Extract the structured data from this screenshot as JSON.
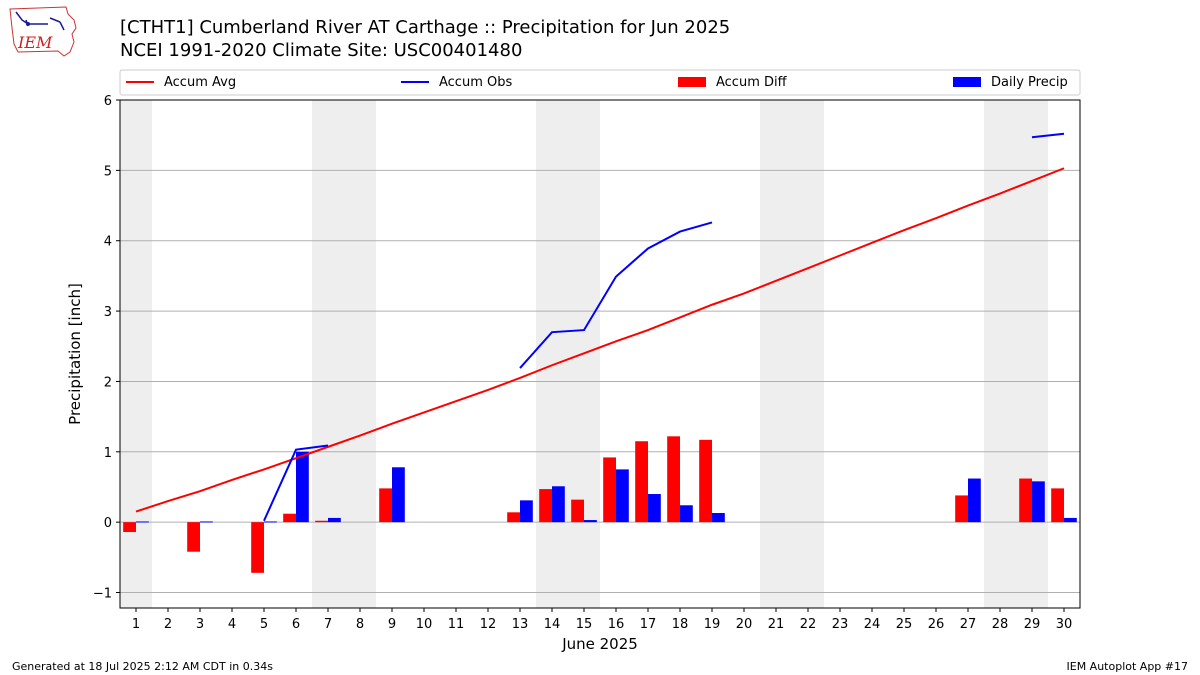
{
  "header": {
    "title_line1": "[CTHT1] Cumberland River  AT Carthage :: Precipitation for Jun 2025",
    "title_line2": "NCEI 1991-2020 Climate Site: USC00401480"
  },
  "logo": {
    "text": "IEM",
    "icon": "iem-iowa-logo-icon"
  },
  "footer": {
    "left": "Generated at 18 Jul 2025 2:12 AM CDT in 0.34s",
    "right": "IEM Autoplot App #17"
  },
  "chart_data": {
    "type": "bar",
    "xlabel": "June 2025",
    "ylabel": "Precipitation [inch]",
    "xlim": [
      0.5,
      30.5
    ],
    "ylim": [
      -1.22,
      6.0
    ],
    "yticks": [
      -1,
      0,
      1,
      2,
      3,
      4,
      5,
      6
    ],
    "xticks": [
      1,
      2,
      3,
      4,
      5,
      6,
      7,
      8,
      9,
      10,
      11,
      12,
      13,
      14,
      15,
      16,
      17,
      18,
      19,
      20,
      21,
      22,
      23,
      24,
      25,
      26,
      27,
      28,
      29,
      30
    ],
    "grid": "horizontal",
    "legend_position": "top",
    "weekend_shading_days": [
      1,
      7,
      8,
      14,
      15,
      21,
      22,
      28,
      29
    ],
    "shading_color": "#eeeeee",
    "colors": {
      "accum_avg": "#ff0000",
      "accum_obs": "#0000ff",
      "accum_diff": "#ff0000",
      "daily_precip": "#0000ff"
    },
    "series": [
      {
        "name": "Accum Avg",
        "kind": "line",
        "days": [
          1,
          2,
          3,
          4,
          5,
          6,
          7,
          8,
          9,
          10,
          11,
          12,
          13,
          14,
          15,
          16,
          17,
          18,
          19,
          20,
          21,
          22,
          23,
          24,
          25,
          26,
          27,
          28,
          29,
          30
        ],
        "values": [
          0.15,
          0.3,
          0.44,
          0.6,
          0.75,
          0.91,
          1.07,
          1.23,
          1.4,
          1.56,
          1.72,
          1.88,
          2.05,
          2.23,
          2.4,
          2.57,
          2.73,
          2.91,
          3.09,
          3.25,
          3.43,
          3.61,
          3.79,
          3.97,
          4.15,
          4.32,
          4.5,
          4.67,
          4.85,
          5.03
        ]
      },
      {
        "name": "Accum Obs",
        "kind": "line",
        "segments": [
          {
            "days": [
              5,
              6,
              7
            ],
            "values": [
              0.02,
              1.03,
              1.09
            ]
          },
          {
            "days": [
              13,
              14,
              15,
              16,
              17,
              18,
              19
            ],
            "values": [
              2.19,
              2.7,
              2.73,
              3.49,
              3.89,
              4.13,
              4.26
            ]
          },
          {
            "days": [
              29,
              30
            ],
            "values": [
              5.47,
              5.52
            ]
          }
        ]
      },
      {
        "name": "Accum Diff",
        "kind": "bar",
        "days": [
          1,
          3,
          5,
          6,
          7,
          9,
          13,
          14,
          15,
          16,
          17,
          18,
          19,
          27,
          29,
          30
        ],
        "values": [
          -0.14,
          -0.42,
          -0.72,
          0.12,
          0.02,
          0.48,
          0.14,
          0.47,
          0.32,
          0.92,
          1.15,
          1.22,
          1.17,
          0.38,
          0.62,
          0.48
        ]
      },
      {
        "name": "Daily Precip",
        "kind": "bar",
        "days": [
          1,
          3,
          5,
          6,
          7,
          9,
          13,
          14,
          15,
          16,
          17,
          18,
          19,
          27,
          29,
          30
        ],
        "values": [
          0.01,
          0.01,
          0.01,
          1.0,
          0.06,
          0.78,
          0.31,
          0.51,
          0.03,
          0.75,
          0.4,
          0.24,
          0.13,
          0.62,
          0.58,
          0.06
        ]
      }
    ]
  }
}
